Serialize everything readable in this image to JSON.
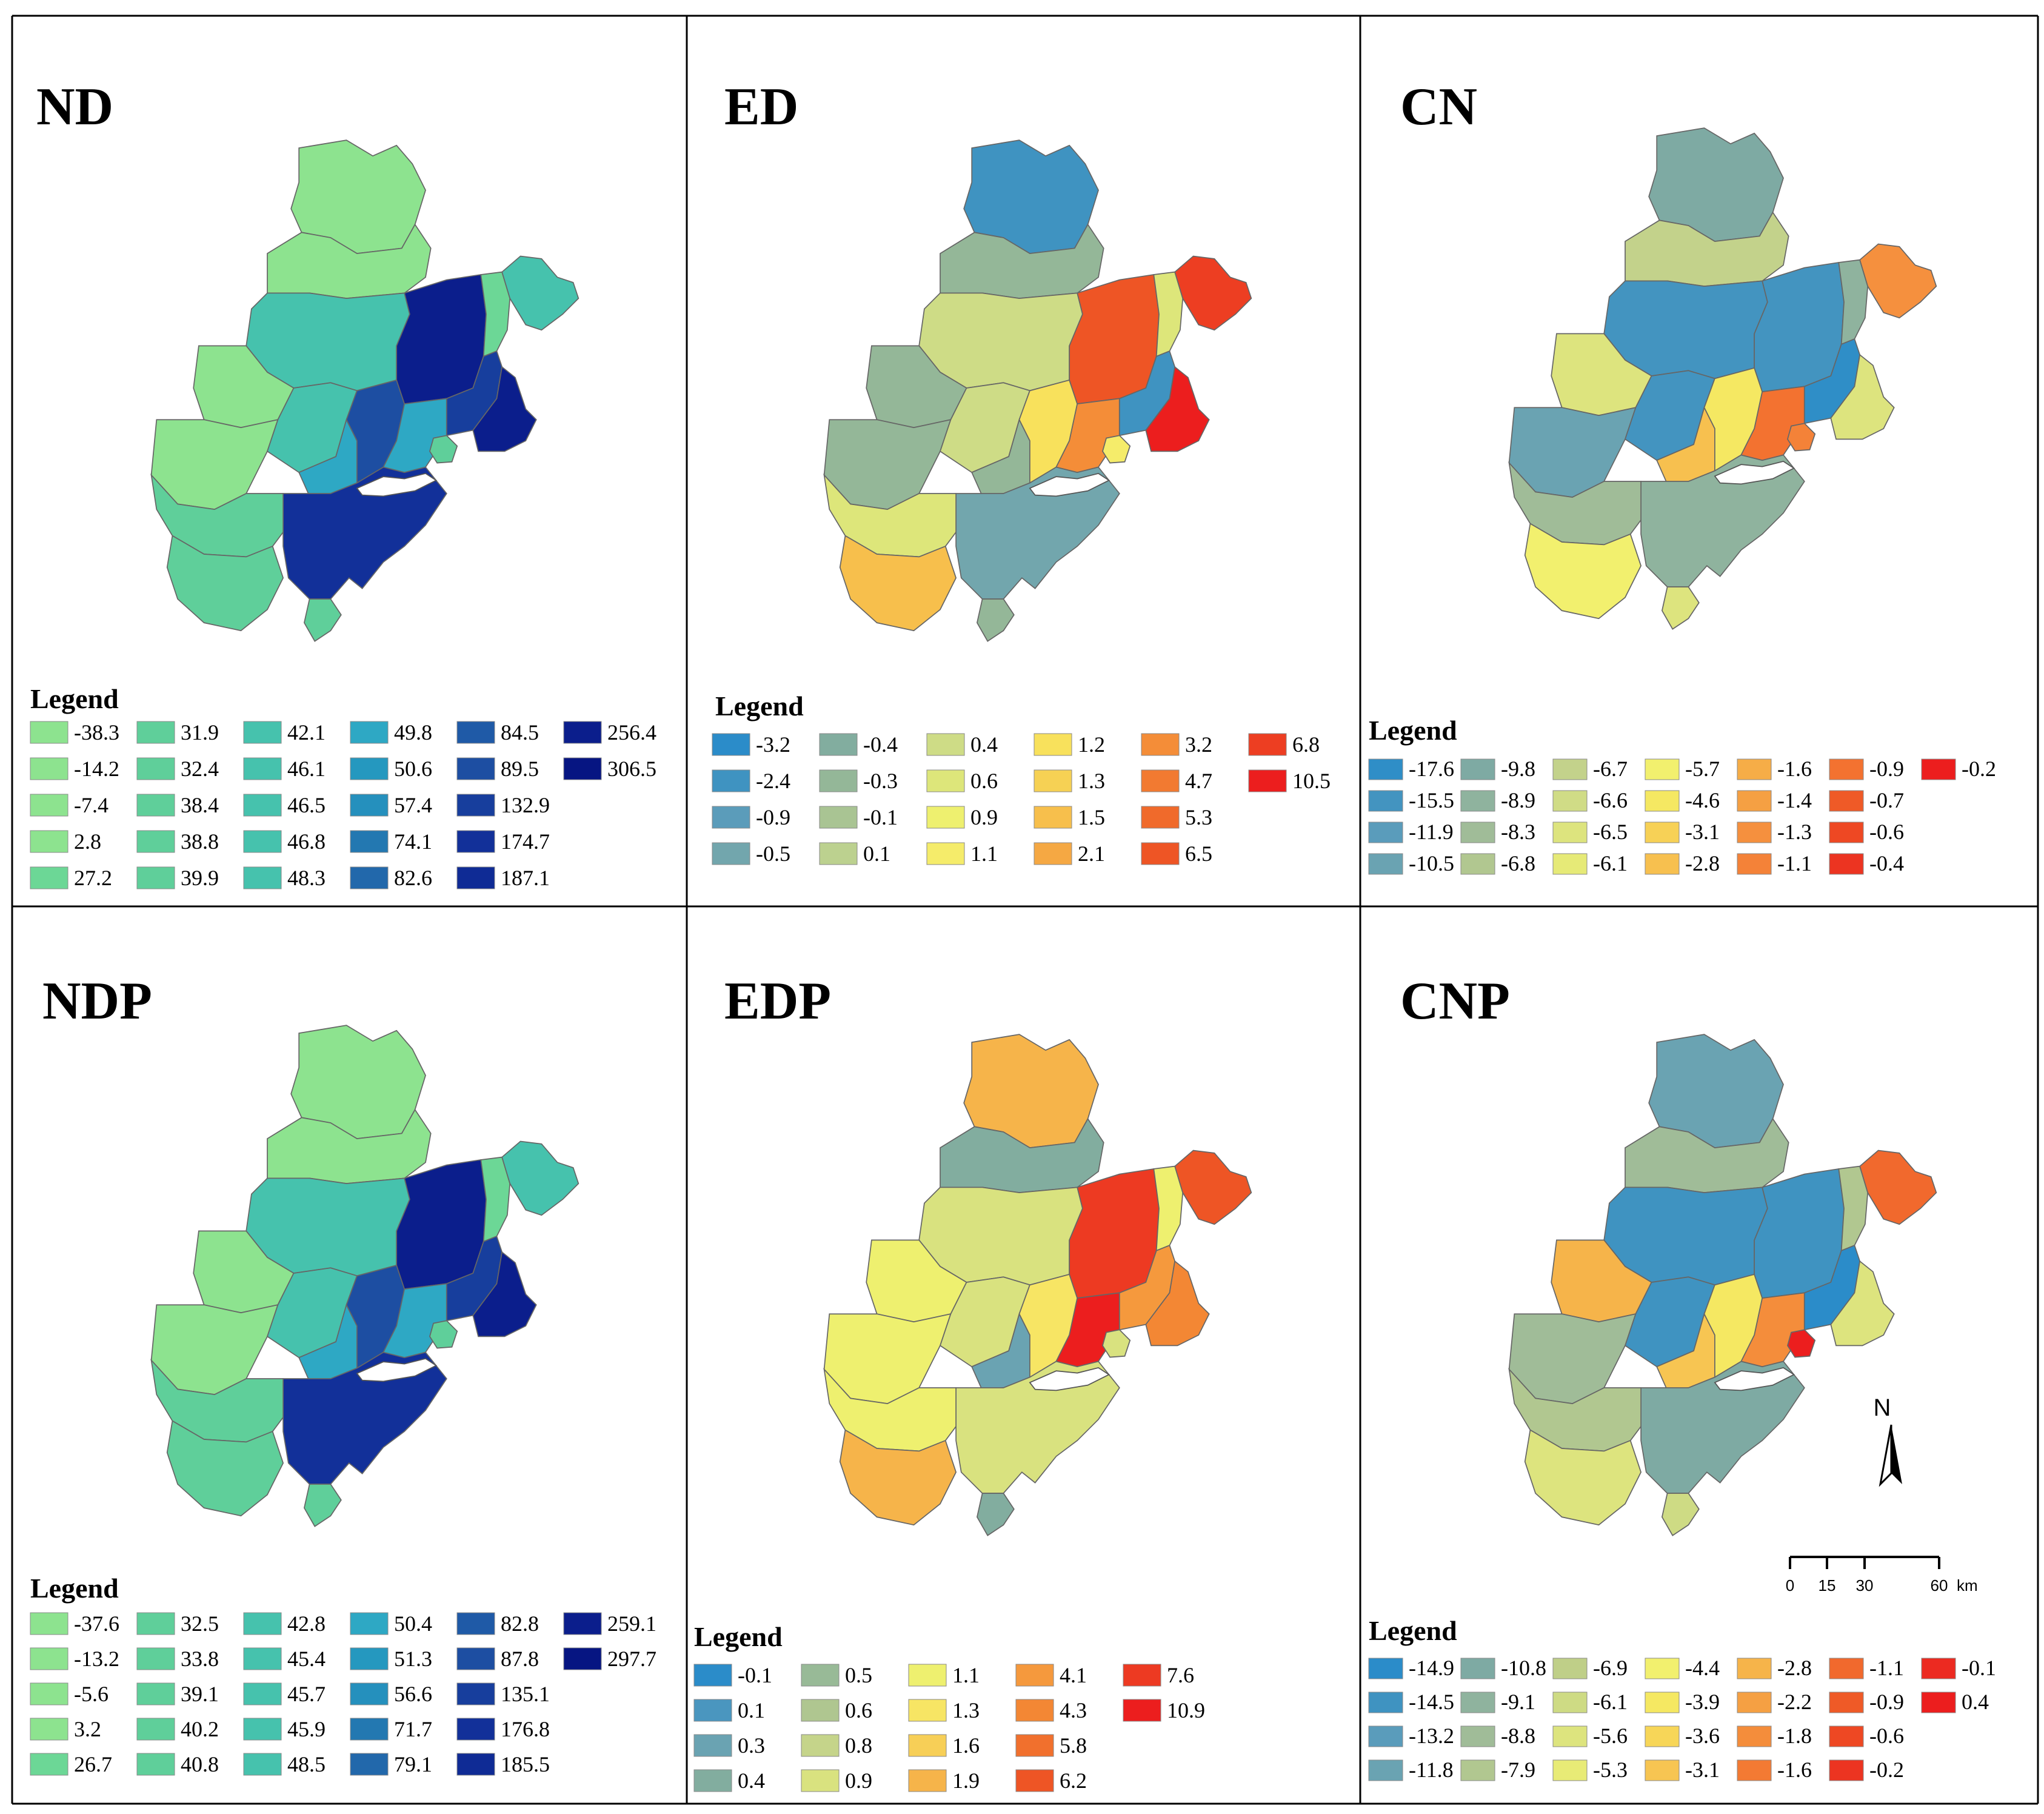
{
  "figure": {
    "panels": [
      {
        "id": "nd",
        "title": "ND",
        "legend_title": "Legend",
        "legend_cols": 6,
        "legend_values": [
          "-38.3",
          "-14.2",
          "-7.4",
          "2.8",
          "27.2",
          "31.9",
          "32.4",
          "38.4",
          "38.8",
          "39.9",
          "42.1",
          "46.1",
          "46.5",
          "46.8",
          "48.3",
          "49.8",
          "50.6",
          "57.4",
          "74.1",
          "82.6",
          "84.5",
          "89.5",
          "132.9",
          "174.7",
          "187.1",
          "256.4",
          "306.5"
        ],
        "legend_colors": [
          "#8de38f",
          "#8de38f",
          "#8de38f",
          "#8de38f",
          "#6cd796",
          "#5fcf9a",
          "#5fcf9a",
          "#5fcf9a",
          "#5fcf9a",
          "#5fcf9a",
          "#46c2ad",
          "#46c2ad",
          "#46c2ad",
          "#46c2ad",
          "#46c2ad",
          "#2ea8c4",
          "#2598bf",
          "#2590bd",
          "#2378b1",
          "#2268ab",
          "#1f5aa7",
          "#1d4ea2",
          "#173e9d",
          "#123099",
          "#0f2b95",
          "#0b1e8c",
          "#061582"
        ],
        "region_fill": {
          "r1": "#8de38f",
          "r2": "#8de38f",
          "r3": "#46c2ad",
          "r4": "#8de38f",
          "r5": "#8de38f",
          "r6": "#46c2ad",
          "r7": "#2ea8c4",
          "r8": "#1d4ea2",
          "r9": "#0b1e8c",
          "r10": "#6cd796",
          "r11": "#2ea8c4",
          "r12": "#173e9d",
          "r13": "#0b1e8c",
          "r14": "#5fcf9a",
          "r15": "#5fcf9a",
          "r16": "#123099",
          "r17": "#5fcf9a",
          "r18": "#5fcf9a",
          "r19": "#46c2ad"
        }
      },
      {
        "id": "ed",
        "title": "ED",
        "legend_title": "Legend",
        "legend_cols": 6,
        "legend_values": [
          "-3.2",
          "-2.4",
          "-0.9",
          "-0.5",
          "-0.4",
          "-0.3",
          "-0.1",
          "0.1",
          "0.4",
          "0.6",
          "0.9",
          "1.1",
          "1.2",
          "1.3",
          "1.5",
          "2.1",
          "3.2",
          "4.7",
          "5.3",
          "6.5",
          "6.8",
          "10.5"
        ],
        "legend_colors": [
          "#2b8cc9",
          "#3f93c1",
          "#5b9cba",
          "#72a6ad",
          "#82ad9f",
          "#94b798",
          "#a9c493",
          "#bcd18f",
          "#cedc86",
          "#dde67a",
          "#eef06f",
          "#f5ec6a",
          "#f8e15c",
          "#f6d154",
          "#f7bf4c",
          "#f5a843",
          "#f48d38",
          "#f27a31",
          "#f06a2b",
          "#ee5525",
          "#ed3e22",
          "#ec1e1e"
        ],
        "region_fill": {
          "r1": "#3f93c1",
          "r2": "#94b798",
          "r3": "#cedc86",
          "r4": "#94b798",
          "r5": "#94b798",
          "r6": "#cedc86",
          "r7": "#94b798",
          "r8": "#f8e15c",
          "r9": "#ee5525",
          "r10": "#dde67a",
          "r11": "#f48d38",
          "r12": "#3f93c1",
          "r13": "#ec1e1e",
          "r14": "#dde67a",
          "r15": "#f7bf4c",
          "r16": "#72a6ad",
          "r17": "#94b798",
          "r18": "#f5ec6a",
          "r19": "#ed3e22"
        }
      },
      {
        "id": "cn",
        "title": "CN",
        "legend_title": "Legend",
        "legend_cols": 7,
        "legend_values": [
          "-17.6",
          "-15.5",
          "-11.9",
          "-10.5",
          "-9.8",
          "-8.9",
          "-8.3",
          "-6.8",
          "-6.7",
          "-6.6",
          "-6.5",
          "-6.1",
          "-5.7",
          "-4.6",
          "-3.1",
          "-2.8",
          "-1.6",
          "-1.4",
          "-1.3",
          "-1.1",
          "-0.9",
          "-0.7",
          "-0.6",
          "-0.4",
          "-0.2"
        ],
        "legend_colors": [
          "#2f8ec7",
          "#4394c0",
          "#5a9cbb",
          "#6aa3b2",
          "#7eaaa3",
          "#8fb39e",
          "#a0bc98",
          "#b1c790",
          "#c3d28b",
          "#d0dc86",
          "#dde47e",
          "#e6ea77",
          "#f2f06e",
          "#f5e862",
          "#f7d156",
          "#f7c04f",
          "#f6ad47",
          "#f5a043",
          "#f5903e",
          "#f48238",
          "#f37230",
          "#ef5a27",
          "#ee4823",
          "#ec3421",
          "#ec1e1e"
        ],
        "region_fill": {
          "r1": "#7eaaa3",
          "r2": "#c3d28b",
          "r3": "#4394c0",
          "r4": "#dde47e",
          "r5": "#6aa3b2",
          "r6": "#4394c0",
          "r7": "#f7c04f",
          "r8": "#f5e862",
          "r9": "#4394c0",
          "r10": "#8fb39e",
          "r11": "#f37230",
          "r12": "#2f8ec7",
          "r13": "#dde47e",
          "r14": "#a0bc98",
          "r15": "#f2f06e",
          "r16": "#8fb39e",
          "r17": "#dde47e",
          "r18": "#f48238",
          "r19": "#f5903e"
        }
      },
      {
        "id": "ndp",
        "title": "NDP",
        "legend_title": "Legend",
        "legend_cols": 6,
        "legend_values": [
          "-37.6",
          "-13.2",
          "-5.6",
          "3.2",
          "26.7",
          "32.5",
          "33.8",
          "39.1",
          "40.2",
          "40.8",
          "42.8",
          "45.4",
          "45.7",
          "45.9",
          "48.5",
          "50.4",
          "51.3",
          "56.6",
          "71.7",
          "79.1",
          "82.8",
          "87.8",
          "135.1",
          "176.8",
          "185.5",
          "259.1",
          "297.7"
        ],
        "legend_colors": [
          "#8de38f",
          "#8de38f",
          "#8de38f",
          "#8de38f",
          "#6cd796",
          "#5fcf9a",
          "#5fcf9a",
          "#5fcf9a",
          "#5fcf9a",
          "#5fcf9a",
          "#46c2ad",
          "#46c2ad",
          "#46c2ad",
          "#46c2ad",
          "#46c2ad",
          "#2ea8c4",
          "#2598bf",
          "#2590bd",
          "#2378b1",
          "#2268ab",
          "#1f5aa7",
          "#1d4ea2",
          "#173e9d",
          "#123099",
          "#0f2b95",
          "#0b1e8c",
          "#061582"
        ],
        "region_fill": {
          "r1": "#8de38f",
          "r2": "#8de38f",
          "r3": "#46c2ad",
          "r4": "#8de38f",
          "r5": "#8de38f",
          "r6": "#46c2ad",
          "r7": "#2ea8c4",
          "r8": "#1d4ea2",
          "r9": "#0b1e8c",
          "r10": "#6cd796",
          "r11": "#2ea8c4",
          "r12": "#173e9d",
          "r13": "#0b1e8c",
          "r14": "#5fcf9a",
          "r15": "#5fcf9a",
          "r16": "#123099",
          "r17": "#5fcf9a",
          "r18": "#5fcf9a",
          "r19": "#46c2ad"
        }
      },
      {
        "id": "edp",
        "title": "EDP",
        "legend_title": "Legend",
        "legend_cols": 6,
        "legend_values": [
          "-0.1",
          "0.1",
          "0.3",
          "0.4",
          "0.5",
          "0.6",
          "0.8",
          "0.9",
          "1.1",
          "1.3",
          "1.6",
          "1.9",
          "4.1",
          "4.3",
          "5.8",
          "6.2",
          "7.6",
          "10.9"
        ],
        "legend_colors": [
          "#2b8cc9",
          "#4a96bf",
          "#6aa3b2",
          "#82ad9f",
          "#98ba97",
          "#afc690",
          "#c5d48a",
          "#d9e27f",
          "#eef06f",
          "#f7e564",
          "#f7cf57",
          "#f6b44a",
          "#f5993d",
          "#f38734",
          "#f1702d",
          "#ee5525",
          "#ed3a22",
          "#ec1e1e"
        ],
        "region_fill": {
          "r1": "#f6b44a",
          "r2": "#82ad9f",
          "r3": "#d9e27f",
          "r4": "#eef06f",
          "r5": "#eef06f",
          "r6": "#d9e27f",
          "r7": "#6aa3b2",
          "r8": "#f7e564",
          "r9": "#ed3a22",
          "r10": "#eef06f",
          "r11": "#ec1e1e",
          "r12": "#f5993d",
          "r13": "#f38734",
          "r14": "#eef06f",
          "r15": "#f6b44a",
          "r16": "#d9e27f",
          "r17": "#82ad9f",
          "r18": "#d9e27f",
          "r19": "#ee5525"
        }
      },
      {
        "id": "cnp",
        "title": "CNP",
        "legend_title": "Legend",
        "legend_cols": 7,
        "legend_values": [
          "-14.9",
          "-14.5",
          "-13.2",
          "-11.8",
          "-10.8",
          "-9.1",
          "-8.8",
          "-7.9",
          "-6.9",
          "-6.1",
          "-5.6",
          "-5.3",
          "-4.4",
          "-3.9",
          "-3.6",
          "-3.1",
          "-2.8",
          "-2.2",
          "-1.8",
          "-1.6",
          "-1.1",
          "-0.9",
          "-0.6",
          "-0.2",
          "-0.1",
          "0.4"
        ],
        "legend_colors": [
          "#2b8cc9",
          "#3f93c1",
          "#5a9cbb",
          "#6aa3b2",
          "#7eaaa3",
          "#8fb39e",
          "#a0bc98",
          "#b1c790",
          "#bfcf88",
          "#cedb84",
          "#dde47e",
          "#e8eb76",
          "#f2f06e",
          "#f5e862",
          "#f7d658",
          "#f7c552",
          "#f6b44a",
          "#f5a043",
          "#f48d3b",
          "#f37a33",
          "#f1692d",
          "#ef5a27",
          "#ee4823",
          "#ec3421",
          "#ec2a21",
          "#ec1e1e"
        ],
        "region_fill": {
          "r1": "#6aa3b2",
          "r2": "#a0bc98",
          "r3": "#3f93c1",
          "r4": "#f6b44a",
          "r5": "#a0bc98",
          "r6": "#3f93c1",
          "r7": "#f7c552",
          "r8": "#f5e862",
          "r9": "#3f93c1",
          "r10": "#b1c790",
          "r11": "#f48d3b",
          "r12": "#2b8cc9",
          "r13": "#dde47e",
          "r14": "#b1c790",
          "r15": "#dde47e",
          "r16": "#7eaaa3",
          "r17": "#cedb84",
          "r18": "#ec1e1e",
          "r19": "#f1692d"
        }
      }
    ],
    "north_label": "N",
    "scale_bar": {
      "labels": [
        "0",
        "15",
        "30",
        "60"
      ],
      "unit": "km"
    }
  }
}
